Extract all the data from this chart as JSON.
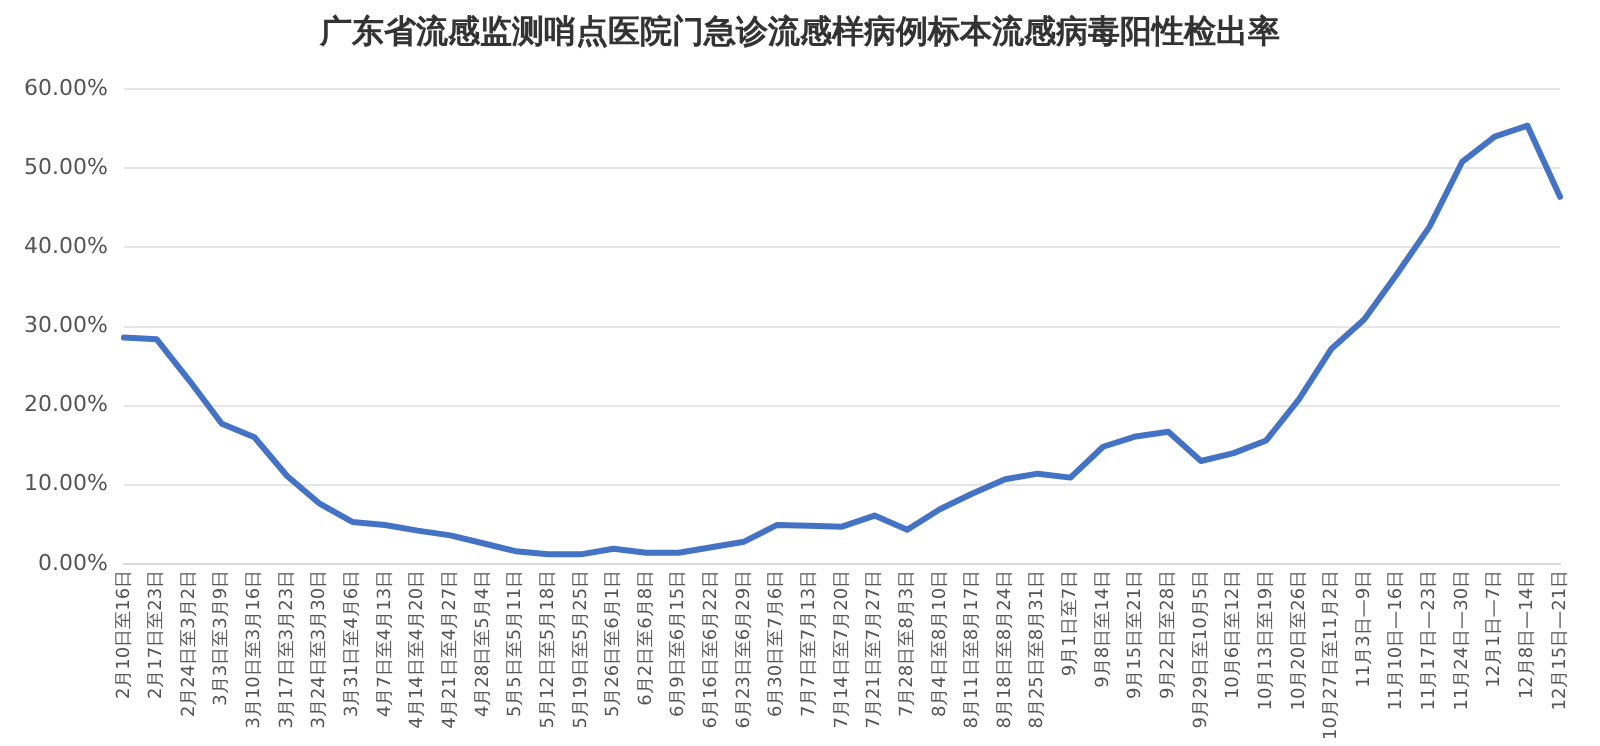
{
  "chart_data": {
    "type": "line",
    "title": "广东省流感监测哨点医院门急诊流感样病例标本流感病毒阳性检出率",
    "categories": [
      "2月10日至16日",
      "2月17日至23日",
      "2月24日至3月2日",
      "3月3日至3月9日",
      "3月10日至3月16日",
      "3月17日至3月23日",
      "3月24日至3月30日",
      "3月31日至4月6日",
      "4月7日至4月13日",
      "4月14日至4月20日",
      "4月21日至4月27日",
      "4月28日至5月4日",
      "5月5日至5月11日",
      "5月12日至5月18日",
      "5月19日至5月25日",
      "5月26日至6月1日",
      "6月2日至6月8日",
      "6月9日至6月15日",
      "6月16日至6月22日",
      "6月23日至6月29日",
      "6月30日至7月6日",
      "7月7日至7月13日",
      "7月14日至7月20日",
      "7月21日至7月27日",
      "7月28日至8月3日",
      "8月4日至8月10日",
      "8月11日至8月17日",
      "8月18日至8月24日",
      "8月25日至8月31日",
      "9月1日至7日",
      "9月8日至14日",
      "9月15日至21日",
      "9月22日至28日",
      "9月29日至10月5日",
      "10月6日至12日",
      "10月13日至19日",
      "10月20日至26日",
      "10月27日至11月2日",
      "11月3日—9日",
      "11月10日—16日",
      "11月17日—23日",
      "11月24日—30日",
      "12月1日—7日",
      "12月8日—14日",
      "12月15日—21日"
    ],
    "series": [
      {
        "color": "#4472c4",
        "values": [
          28.6,
          28.4,
          23.2,
          17.7,
          16.0,
          11.1,
          7.6,
          5.3,
          4.9,
          4.2,
          3.6,
          2.6,
          1.6,
          1.2,
          1.2,
          1.9,
          1.4,
          1.4,
          2.1,
          2.8,
          4.9,
          4.8,
          4.7,
          6.1,
          4.3,
          6.9,
          8.9,
          10.7,
          11.4,
          10.9,
          14.8,
          16.1,
          16.7,
          13.0,
          14.0,
          15.6,
          20.8,
          27.2,
          30.9,
          36.6,
          42.6,
          50.8,
          54.0,
          55.4,
          46.4
        ]
      }
    ],
    "ylim": [
      0,
      60
    ],
    "yticks": [
      {
        "value": 0,
        "label": "0.00%"
      },
      {
        "value": 10,
        "label": "10.00%"
      },
      {
        "value": 20,
        "label": "20.00%"
      },
      {
        "value": 30,
        "label": "30.00%"
      },
      {
        "value": 40,
        "label": "40.00%"
      },
      {
        "value": 50,
        "label": "50.00%"
      },
      {
        "value": 60,
        "label": "60.00%"
      }
    ],
    "grid": "y",
    "legend": false,
    "marker": "none",
    "line_style": "solid"
  }
}
